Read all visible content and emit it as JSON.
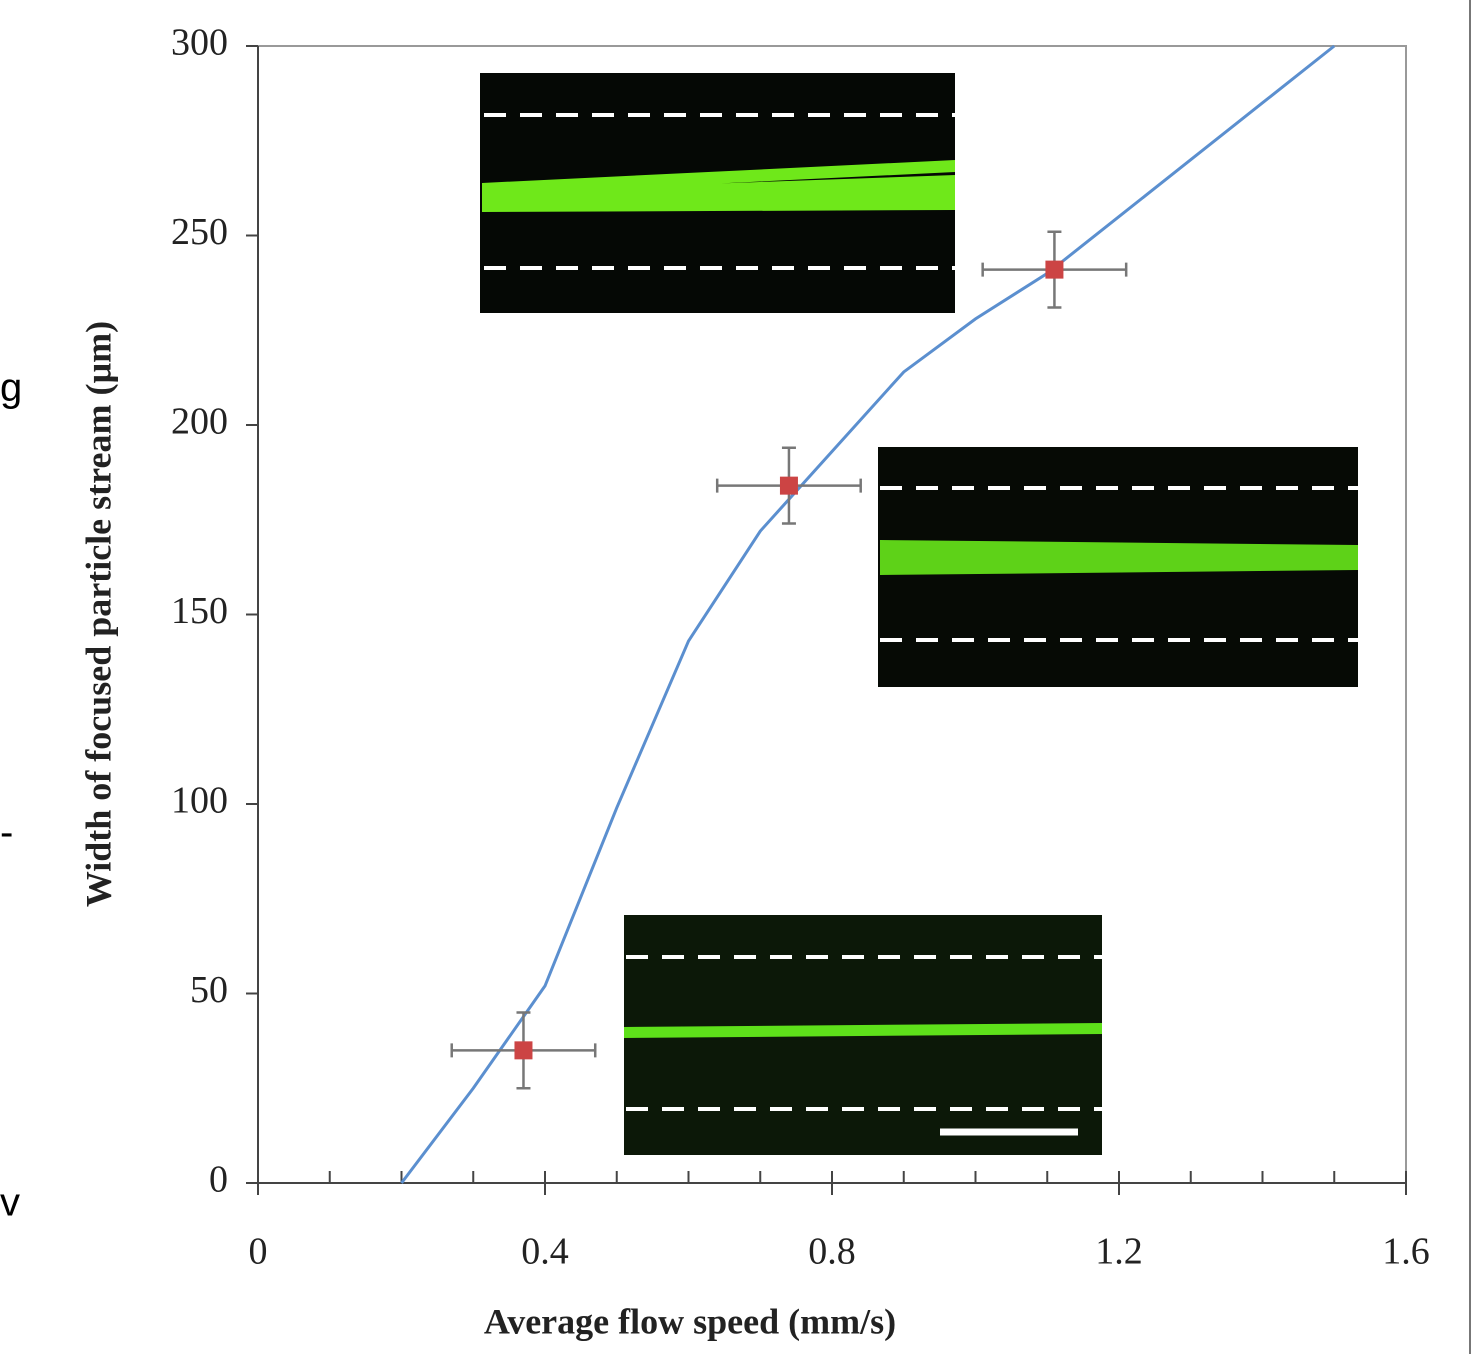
{
  "chart_data": {
    "type": "scatter",
    "x_label": "Average flow speed (mm/s)",
    "y_label": "Width of focused particle stream (µm)",
    "xlim": [
      0,
      1.6
    ],
    "xticks": [
      0,
      0.4,
      0.8,
      1.2,
      1.6
    ],
    "x_minor_step": 0.1,
    "ylim": [
      0,
      300
    ],
    "yticks": [
      0,
      50,
      100,
      150,
      200,
      250,
      300
    ],
    "series": [
      {
        "type": "line",
        "color": "#5b8fcf",
        "x": [
          0.2,
          0.3,
          0.4,
          0.5,
          0.6,
          0.7,
          0.8,
          0.9,
          1.0,
          1.1,
          1.2,
          1.3,
          1.4,
          1.5
        ],
        "values": [
          0,
          25,
          52,
          99,
          143,
          172,
          193,
          214,
          228,
          240,
          255,
          270,
          285,
          300
        ]
      },
      {
        "type": "scatter",
        "color": "#cc4444",
        "error_color": "#777777",
        "x": [
          0.37,
          0.74,
          1.11
        ],
        "values": [
          35,
          184,
          241
        ],
        "x_err": [
          0.1,
          0.1,
          0.1
        ],
        "y_err": [
          10,
          10,
          10
        ]
      }
    ],
    "margin_text": [
      "g",
      "-",
      "v"
    ]
  }
}
